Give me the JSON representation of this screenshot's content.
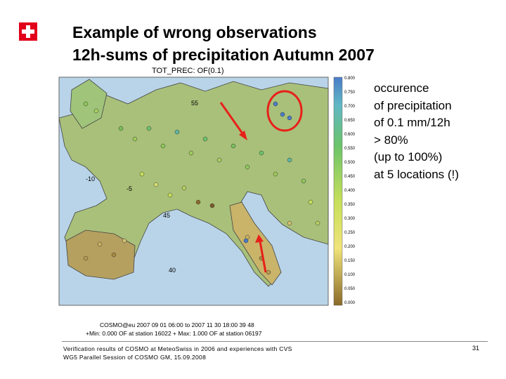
{
  "title": {
    "line1": "Example of wrong observations",
    "line2": "12h-sums of precipitation Autumn 2007"
  },
  "figure": {
    "caption": "TOT_PREC: OF(0.1)",
    "colorbar_labels": [
      "0.800",
      "0.750",
      "0.700",
      "0.650",
      "0.600",
      "0.550",
      "0.500",
      "0.450",
      "0.400",
      "0.350",
      "0.300",
      "0.250",
      "0.200",
      "0.150",
      "0.100",
      "0.050",
      "0.000"
    ],
    "map_labels": {
      "lat55": "55",
      "lon_m10": "-10",
      "lon_m5": "-5",
      "lat45": "45",
      "lat40": "40"
    },
    "info_line1": "COSMO@eu 2007 09 01 06:00 to 2007 11 30 18:00 39 48",
    "info_line2": "+Min: 0.000 OF at station 16022 + Max: 1.000 OF at station 06197"
  },
  "notes": [
    "occurence",
    "of precipitation",
    "of 0.1 mm/12h",
    "> 80%",
    "(up to 100%)",
    "at 5 locations (!)"
  ],
  "footer": {
    "line1": "Verification results of COSMO at MeteoSwiss in 2006 and experiences with CVS",
    "line2": "WG5 Parallel Session of COSMO GM, 15.09.2008",
    "page": "31"
  },
  "colors": {
    "swiss_red": "#e2001a",
    "annotation_red": "#e8201a",
    "sea": "#b9d4e8"
  }
}
